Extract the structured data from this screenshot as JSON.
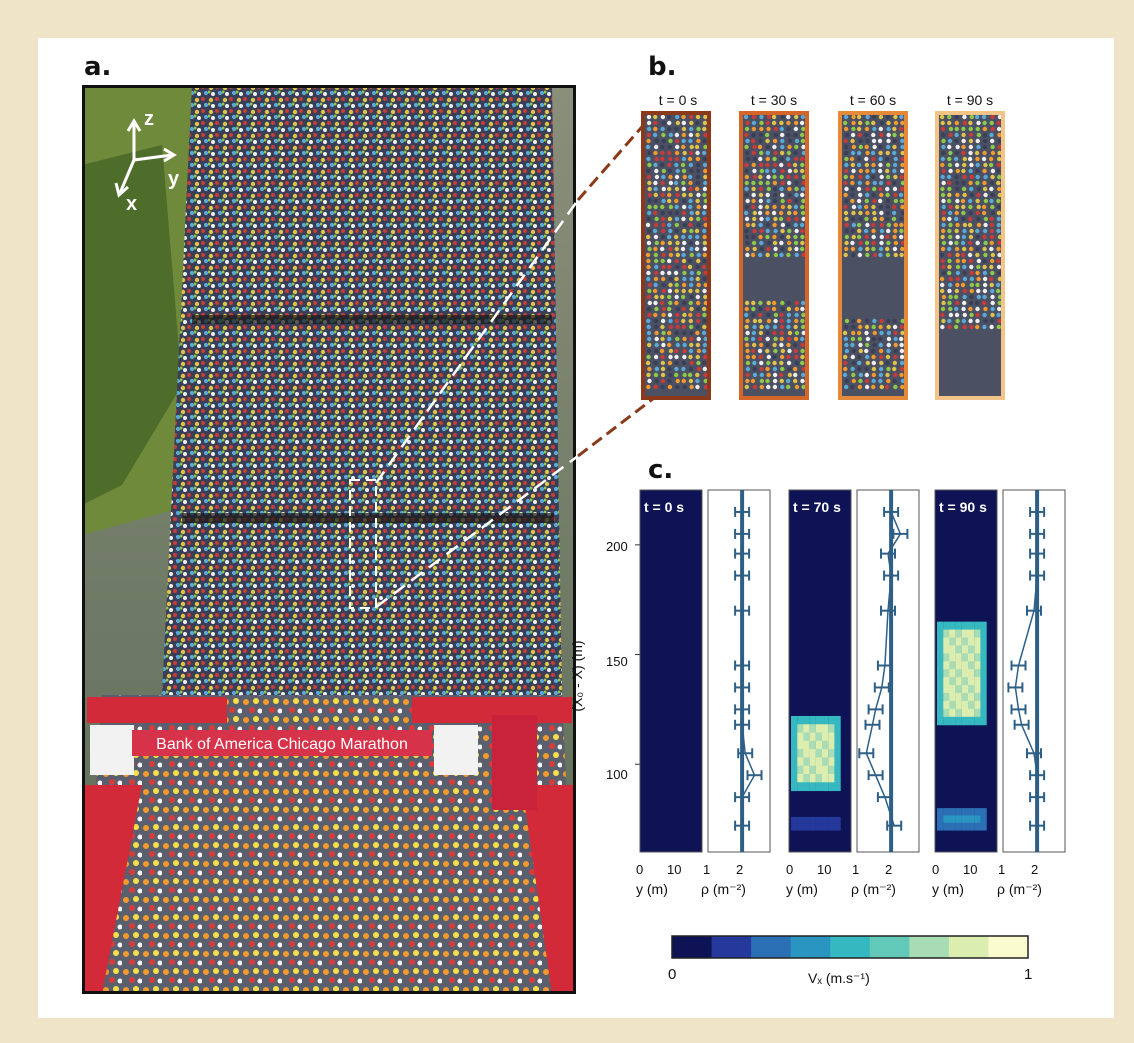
{
  "panel_a": {
    "label": "a.",
    "axes": {
      "z": "z",
      "y": "y",
      "x": "x"
    },
    "banner": "Bank of America Chicago Marathon"
  },
  "panel_b": {
    "label": "b.",
    "frames": [
      {
        "time": "t = 0 s",
        "border": "#8a3a1a"
      },
      {
        "time": "t = 30 s",
        "border": "#d4662a"
      },
      {
        "time": "t = 60 s",
        "border": "#e58a3a"
      },
      {
        "time": "t = 90 s",
        "border": "#f2c488"
      }
    ]
  },
  "panel_c": {
    "label": "c.",
    "y_axis_label": "(X₀ - X) (m)",
    "y_ticks": [
      "200",
      "150",
      "100"
    ],
    "snapshots": [
      {
        "time": "t = 0 s"
      },
      {
        "time": "t = 70 s"
      },
      {
        "time": "t = 90 s"
      }
    ],
    "heatmap_x_ticks": [
      "0",
      "10"
    ],
    "heatmap_x_label": "y (m)",
    "density_x_ticks": [
      "1",
      "2"
    ],
    "density_x_label": "ρ (m⁻²)",
    "colorbar": {
      "label": "Vₓ (m.s⁻¹)",
      "min": "0",
      "max": "1",
      "colors": [
        "#0d1354",
        "#24399b",
        "#2b6fb5",
        "#2a95c0",
        "#35b8bf",
        "#62c9b8",
        "#a8dcb5",
        "#dcedb0",
        "#fbfbd0"
      ]
    }
  },
  "chart_data": [
    {
      "type": "heatmap",
      "title": "t = 0 s",
      "xlabel": "y (m)",
      "ylabel": "(X₀ - X) (m)",
      "xlim": [
        0,
        15
      ],
      "ylim": [
        60,
        225
      ],
      "zlim": [
        0,
        1
      ],
      "regions": []
    },
    {
      "type": "heatmap",
      "title": "t = 70 s",
      "xlabel": "y (m)",
      "ylabel": "(X₀ - X) (m)",
      "xlim": [
        0,
        15
      ],
      "ylim": [
        60,
        225
      ],
      "zlim": [
        0,
        1
      ],
      "regions": [
        {
          "y_range": [
            88,
            122
          ],
          "value": 0.9
        },
        {
          "y_range": [
            70,
            76
          ],
          "value": 0.3
        }
      ]
    },
    {
      "type": "heatmap",
      "title": "t = 90 s",
      "xlabel": "y (m)",
      "ylabel": "(X₀ - X) (m)",
      "xlim": [
        0,
        15
      ],
      "ylim": [
        60,
        225
      ],
      "zlim": [
        0,
        1
      ],
      "regions": [
        {
          "y_range": [
            118,
            165
          ],
          "value": 0.9
        },
        {
          "y_range": [
            70,
            80
          ],
          "value": 0.4
        }
      ]
    },
    {
      "type": "line",
      "title": "t = 0 s",
      "xlabel": "ρ (m⁻²)",
      "xlim": [
        1,
        3
      ],
      "ylim": [
        60,
        225
      ],
      "series": [
        {
          "x": [
            2.1,
            2.1,
            2.1,
            2.1,
            2.1,
            2.1,
            2.1,
            2.1,
            2.1,
            2.2,
            2.5,
            2.1,
            2.1
          ],
          "y": [
            215,
            205,
            196,
            186,
            170,
            145,
            135,
            125,
            118,
            105,
            95,
            85,
            72
          ]
        }
      ]
    },
    {
      "type": "line",
      "title": "t = 70 s",
      "xlabel": "ρ (m⁻²)",
      "xlim": [
        1,
        3
      ],
      "ylim": [
        60,
        225
      ],
      "series": [
        {
          "x": [
            2.1,
            2.4,
            2.0,
            2.1,
            2.0,
            1.9,
            1.8,
            1.6,
            1.5,
            1.3,
            1.6,
            1.9,
            2.2
          ],
          "y": [
            215,
            205,
            196,
            186,
            170,
            145,
            135,
            125,
            118,
            105,
            95,
            85,
            72
          ]
        }
      ]
    },
    {
      "type": "line",
      "title": "t = 90 s",
      "xlabel": "ρ (m⁻²)",
      "xlim": [
        1,
        3
      ],
      "ylim": [
        60,
        225
      ],
      "series": [
        {
          "x": [
            2.1,
            2.1,
            2.1,
            2.1,
            2.0,
            1.5,
            1.4,
            1.5,
            1.6,
            2.0,
            2.1,
            2.1,
            2.1
          ],
          "y": [
            215,
            205,
            196,
            186,
            170,
            145,
            135,
            125,
            118,
            105,
            95,
            85,
            72
          ]
        }
      ]
    }
  ]
}
